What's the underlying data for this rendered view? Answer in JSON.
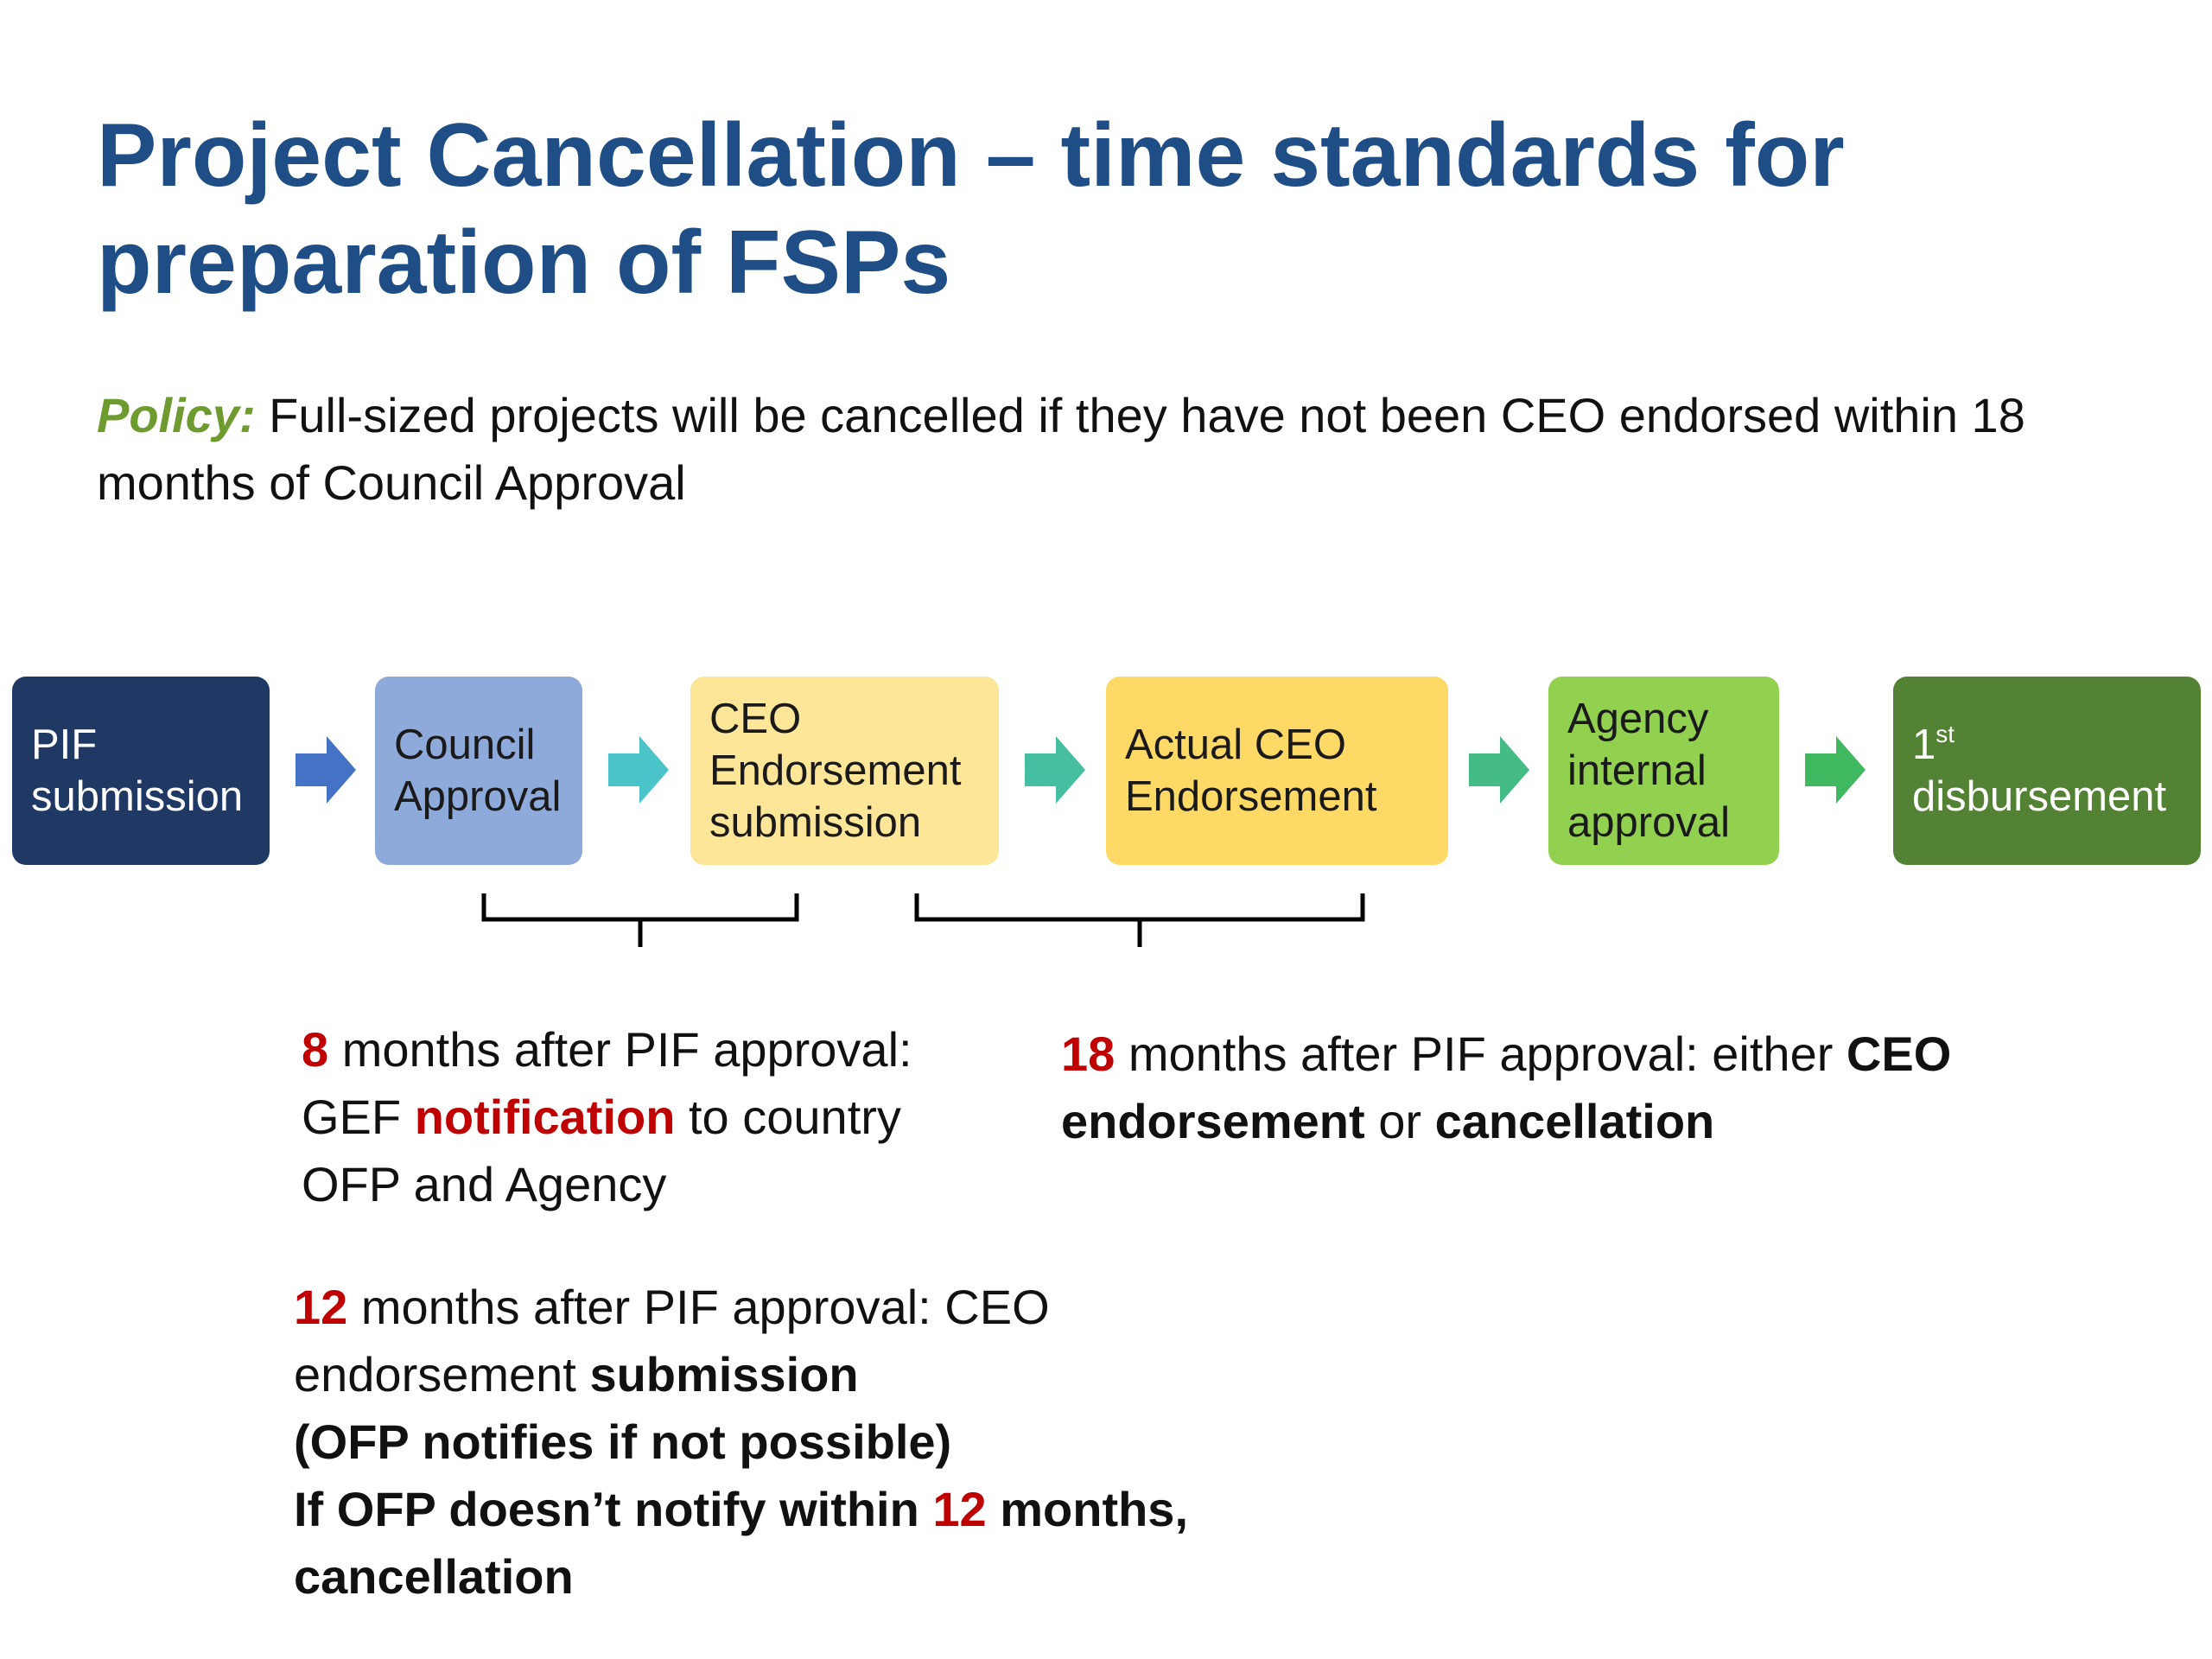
{
  "title": "Project Cancellation – time standards for preparation of FSPs",
  "policy": {
    "label": "Policy:",
    "text": " Full-sized projects will be cancelled if they have not been CEO endorsed within 18 months of Council Approval"
  },
  "steps": [
    {
      "label": "PIF submission",
      "color": "#1f3864",
      "text_color": "#ffffff"
    },
    {
      "label": "Council Approval",
      "color": "#8eaadb",
      "text_color": "#1a1a1a"
    },
    {
      "label": "CEO Endorsement submission",
      "color": "#fee699",
      "text_color": "#1a1a1a"
    },
    {
      "label": "Actual CEO Endorsement",
      "color": "#ffd966",
      "text_color": "#1a1a1a"
    },
    {
      "label": "Agency internal approval",
      "color": "#92d050",
      "text_color": "#1a1a1a"
    },
    {
      "label_sup_base": "1",
      "label_sup": "st",
      "label_rest": "disbursement",
      "color": "#548235",
      "text_color": "#ffffff"
    }
  ],
  "arrow_colors": [
    "#4472c4",
    "#4bc4c9",
    "#46bfa1",
    "#45bb85",
    "#3fb85f"
  ],
  "notes": {
    "eight": {
      "num": "8",
      "t1": " months after PIF approval: GEF ",
      "hl": "notification",
      "t2": " to country OFP and Agency"
    },
    "eighteen": {
      "num": "18",
      "t1": " months after PIF approval: either ",
      "b1": "CEO endorsement",
      "t2": " or ",
      "b2": "cancellation"
    },
    "twelve": {
      "num": "12",
      "t1": " months after PIF approval: CEO endorsement ",
      "b1": "submission",
      "line2": "(OFP notifies if not possible)",
      "line3a": "If OFP doesn’t notify within ",
      "line3num": "12",
      "line3b": " months,",
      "line4": "cancellation"
    }
  }
}
